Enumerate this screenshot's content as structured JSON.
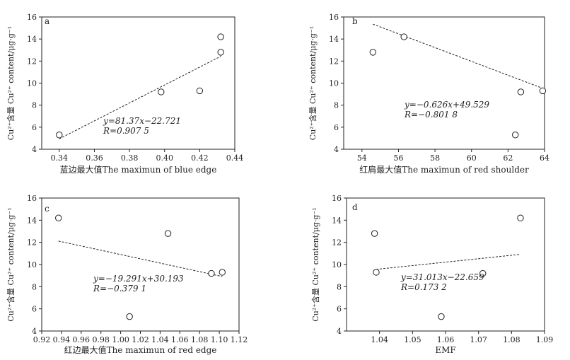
{
  "chart_data": [
    {
      "type": "scatter",
      "panel_label": "a",
      "xlabel": "蓝边最大值The maximun of blue edge",
      "ylabel": "Cu²⁺含量 Cu²⁺ content/μg·g⁻¹",
      "xlim": [
        0.33,
        0.44
      ],
      "ylim": [
        4,
        16
      ],
      "xticks": [
        0.34,
        0.36,
        0.38,
        0.4,
        0.42,
        0.44
      ],
      "xtick_labels": [
        "0.34",
        "0.36",
        "0.38",
        "0.40",
        "0.42",
        "0.44"
      ],
      "yticks": [
        4,
        6,
        8,
        10,
        12,
        14,
        16
      ],
      "ytick_labels": [
        "4",
        "6",
        "8",
        "10",
        "12",
        "14",
        "16"
      ],
      "points": [
        {
          "x": 0.34,
          "y": 5.3
        },
        {
          "x": 0.398,
          "y": 9.2
        },
        {
          "x": 0.42,
          "y": 9.3
        },
        {
          "x": 0.432,
          "y": 12.8
        },
        {
          "x": 0.432,
          "y": 14.2
        }
      ],
      "trendline": {
        "slope": 81.37,
        "intercept": -22.721,
        "x_range": [
          0.34,
          0.432
        ]
      },
      "equation_text": "y=81.37x−22.721",
      "r_text": "R=0.907 5"
    },
    {
      "type": "scatter",
      "panel_label": "b",
      "xlabel": "红肩最大值The maximun of red shoulder",
      "ylabel": "Cu²⁺含量 Cu²⁺ content/μg·g⁻¹",
      "xlim": [
        53,
        64
      ],
      "ylim": [
        4,
        16
      ],
      "xticks": [
        54,
        56,
        58,
        60,
        62,
        64
      ],
      "xtick_labels": [
        "54",
        "56",
        "58",
        "60",
        "62",
        "64"
      ],
      "yticks": [
        4,
        6,
        8,
        10,
        12,
        14,
        16
      ],
      "ytick_labels": [
        "4",
        "6",
        "8",
        "10",
        "12",
        "14",
        "16"
      ],
      "points": [
        {
          "x": 54.6,
          "y": 12.8
        },
        {
          "x": 56.3,
          "y": 14.2
        },
        {
          "x": 62.4,
          "y": 5.3
        },
        {
          "x": 62.7,
          "y": 9.2
        },
        {
          "x": 63.9,
          "y": 9.3
        }
      ],
      "trendline": {
        "slope": -0.626,
        "intercept": 49.529,
        "x_range": [
          54.6,
          63.9
        ]
      },
      "equation_text": "y=−0.626x+49.529",
      "r_text": "R=−0.801 8"
    },
    {
      "type": "scatter",
      "panel_label": "c",
      "xlabel": "红边最大值The maximun of red edge",
      "ylabel": "Cu²⁺含量 Cu²⁺ content/μg·g⁻¹",
      "xlim": [
        0.92,
        1.12
      ],
      "ylim": [
        4,
        16
      ],
      "xticks": [
        0.92,
        0.94,
        0.96,
        0.98,
        1.0,
        1.02,
        1.04,
        1.06,
        1.08,
        1.1,
        1.12
      ],
      "xtick_labels": [
        "0.92",
        "0.94",
        "0.96",
        "0.98",
        "1.00",
        "1.02",
        "1.04",
        "1.06",
        "1.08",
        "1.10",
        "1.12"
      ],
      "yticks": [
        4,
        6,
        8,
        10,
        12,
        14,
        16
      ],
      "ytick_labels": [
        "4",
        "6",
        "8",
        "10",
        "12",
        "14",
        "16"
      ],
      "points": [
        {
          "x": 0.937,
          "y": 14.2
        },
        {
          "x": 1.009,
          "y": 5.3
        },
        {
          "x": 1.048,
          "y": 12.8
        },
        {
          "x": 1.092,
          "y": 9.2
        },
        {
          "x": 1.103,
          "y": 9.3
        }
      ],
      "trendline": {
        "slope": -19.291,
        "intercept": 30.193,
        "x_range": [
          0.937,
          1.103
        ]
      },
      "equation_text": "y=−19.291x+30.193",
      "r_text": "R=−0.379 1"
    },
    {
      "type": "scatter",
      "panel_label": "d",
      "xlabel": "EMF",
      "ylabel": "Cu²⁺含量 Cu²⁺ content/μg·g⁻¹",
      "xlim": [
        1.03,
        1.09
      ],
      "ylim": [
        4,
        16
      ],
      "xticks": [
        1.04,
        1.05,
        1.06,
        1.07,
        1.08,
        1.09
      ],
      "xtick_labels": [
        "1.04",
        "1.05",
        "1.06",
        "1.07",
        "1.08",
        "1.09"
      ],
      "yticks": [
        4,
        6,
        8,
        10,
        12,
        14,
        16
      ],
      "ytick_labels": [
        "4",
        "6",
        "8",
        "10",
        "12",
        "14",
        "16"
      ],
      "points": [
        {
          "x": 1.0385,
          "y": 12.8
        },
        {
          "x": 1.039,
          "y": 9.3
        },
        {
          "x": 1.0587,
          "y": 5.3
        },
        {
          "x": 1.0713,
          "y": 9.2
        },
        {
          "x": 1.0827,
          "y": 14.2
        }
      ],
      "trendline": {
        "slope": 31.013,
        "intercept": -22.659,
        "x_range": [
          1.039,
          1.0827
        ]
      },
      "equation_text": "y=31.013x−22.659",
      "r_text": "R=0.173 2"
    }
  ]
}
